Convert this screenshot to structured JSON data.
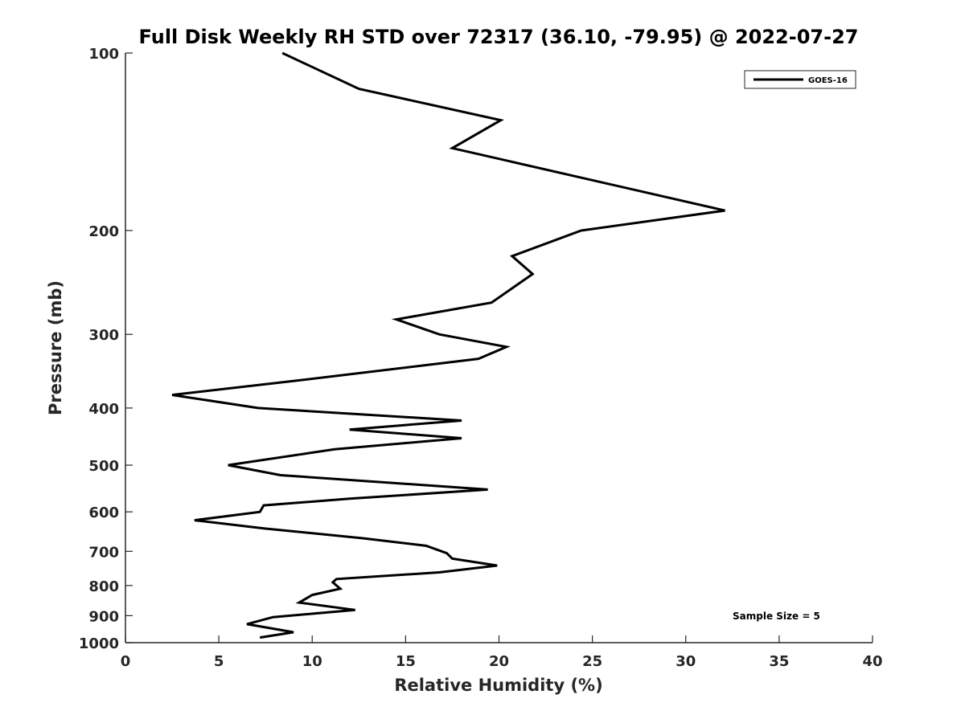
{
  "chart_data": {
    "type": "line",
    "title": "Full Disk Weekly RH STD over 72317 (36.10, -79.95) @ 2022-07-27",
    "xlabel": "Relative Humidity (%)",
    "ylabel": "Pressure (mb)",
    "xlim": [
      0,
      40
    ],
    "ylim": [
      100,
      1000
    ],
    "y_scale": "log",
    "y_inverted": true,
    "grid": false,
    "xticks": [
      0,
      5,
      10,
      15,
      20,
      25,
      30,
      35,
      40
    ],
    "yticks": [
      100,
      200,
      300,
      400,
      500,
      600,
      700,
      800,
      900,
      1000
    ],
    "legend_position": "top-right",
    "annotation": "Sample Size = 5",
    "series": [
      {
        "name": "GOES-16",
        "color": "#000000",
        "x": [
          8.4,
          12.5,
          20.1,
          17.5,
          32.1,
          24.4,
          20.7,
          21.8,
          19.6,
          14.5,
          16.8,
          20.4,
          18.9,
          9.0,
          2.5,
          7.1,
          18.0,
          12.0,
          18.0,
          11.2,
          5.5,
          8.3,
          19.4,
          12.0,
          7.4,
          7.2,
          3.7,
          7.4,
          12.7,
          16.1,
          17.2,
          17.5,
          19.9,
          16.8,
          11.3,
          11.1,
          11.5,
          10.0,
          9.3,
          12.3,
          7.9,
          6.5,
          9.0,
          7.2
        ],
        "y": [
          100,
          115,
          130,
          145,
          185,
          200,
          221,
          237,
          265,
          283,
          300,
          315,
          330,
          360,
          380,
          400,
          420,
          435,
          450,
          470,
          500,
          520,
          550,
          570,
          585,
          600,
          620,
          640,
          665,
          685,
          705,
          720,
          740,
          760,
          780,
          790,
          810,
          830,
          855,
          880,
          905,
          930,
          960,
          980
        ]
      }
    ]
  }
}
